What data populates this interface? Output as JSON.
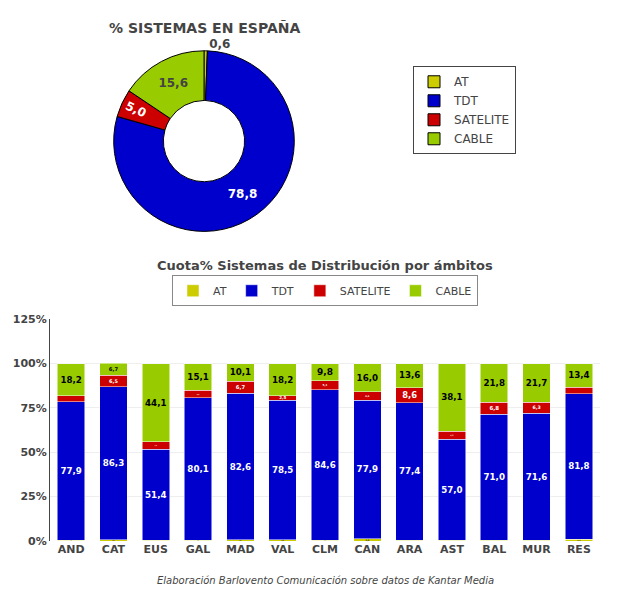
{
  "chart_data": [
    {
      "type": "pie",
      "title": "% SISTEMAS EN ESPAÑA",
      "categories": [
        "AT",
        "TDT",
        "SATELITE",
        "CABLE"
      ],
      "values": [
        0.6,
        78.8,
        5.0,
        15.6
      ],
      "value_labels": [
        "0,6",
        "78,8",
        "5,0",
        "15,6"
      ],
      "colors": [
        "#CCCC00",
        "#0000CC",
        "#CC0000",
        "#99CC00"
      ],
      "data_labels": true,
      "legend": "right"
    },
    {
      "type": "bar",
      "title": "Cuota% Sistemas de Distribución por ámbitos",
      "categories": [
        "AND",
        "CAT",
        "EUS",
        "GAL",
        "MAD",
        "VAL",
        "CLM",
        "CAN",
        "ARA",
        "AST",
        "BAL",
        "MUR",
        "RES"
      ],
      "series": [
        {
          "name": "AT",
          "color": "#CCCC00",
          "values": [
            0.5,
            0.6,
            0.3,
            0.5,
            0.6,
            0.8,
            0.5,
            1.3,
            0.4,
            0.4,
            0.4,
            0.3,
            1.1
          ],
          "value_labels": [
            "0,5",
            "0,6",
            "0,3",
            "0,5",
            "0,6",
            "0,8",
            "0,5",
            "1,3",
            "0,4",
            "0,4",
            "0,4",
            "0,3",
            "1,1"
          ]
        },
        {
          "name": "TDT",
          "color": "#0000CC",
          "values": [
            77.9,
            86.3,
            51.4,
            80.1,
            82.6,
            78.5,
            84.6,
            77.9,
            77.4,
            57.0,
            71.0,
            71.6,
            81.8
          ],
          "value_labels": [
            "77,9",
            "86,3",
            "51,4",
            "80,1",
            "82,6",
            "78,5",
            "84,6",
            "77,9",
            "77,4",
            "57,0",
            "71,0",
            "71,6",
            "81,8"
          ]
        },
        {
          "name": "SATELITE",
          "color": "#CC0000",
          "values": [
            3.4,
            6.5,
            4.2,
            4.3,
            6.7,
            2.5,
            5.1,
            4.8,
            8.6,
            4.5,
            6.8,
            6.3,
            3.7
          ],
          "value_labels": [
            "3,4",
            "6,5",
            "4,2",
            "4,3",
            "6,7",
            "2,5",
            "5,1",
            "4,8",
            "8,6",
            "4,5",
            "6,8",
            "6,3",
            "3,7"
          ]
        },
        {
          "name": "CABLE",
          "color": "#99CC00",
          "values": [
            18.2,
            6.7,
            44.1,
            15.1,
            10.1,
            18.2,
            9.8,
            16.0,
            13.6,
            38.1,
            21.8,
            21.7,
            13.4
          ],
          "value_labels": [
            "18,2",
            "6,7",
            "44,1",
            "15,1",
            "10,1",
            "18,2",
            "9,8",
            "16,0",
            "13,6",
            "38,1",
            "21,8",
            "21,7",
            "13,4"
          ]
        }
      ],
      "stacked": true,
      "data_labels": true,
      "ylim": [
        0,
        125
      ],
      "yticks": [
        {
          "value": 0,
          "label": "0%"
        },
        {
          "value": 25,
          "label": "25%"
        },
        {
          "value": 50,
          "label": "50%"
        },
        {
          "value": 75,
          "label": "75%"
        },
        {
          "value": 100,
          "label": "100%"
        },
        {
          "value": 125,
          "label": "125%"
        }
      ],
      "grid": true,
      "legend": "top",
      "annotations": [
        "Elaboración Barlovento Comunicación sobre datos de Kantar Media"
      ]
    }
  ]
}
